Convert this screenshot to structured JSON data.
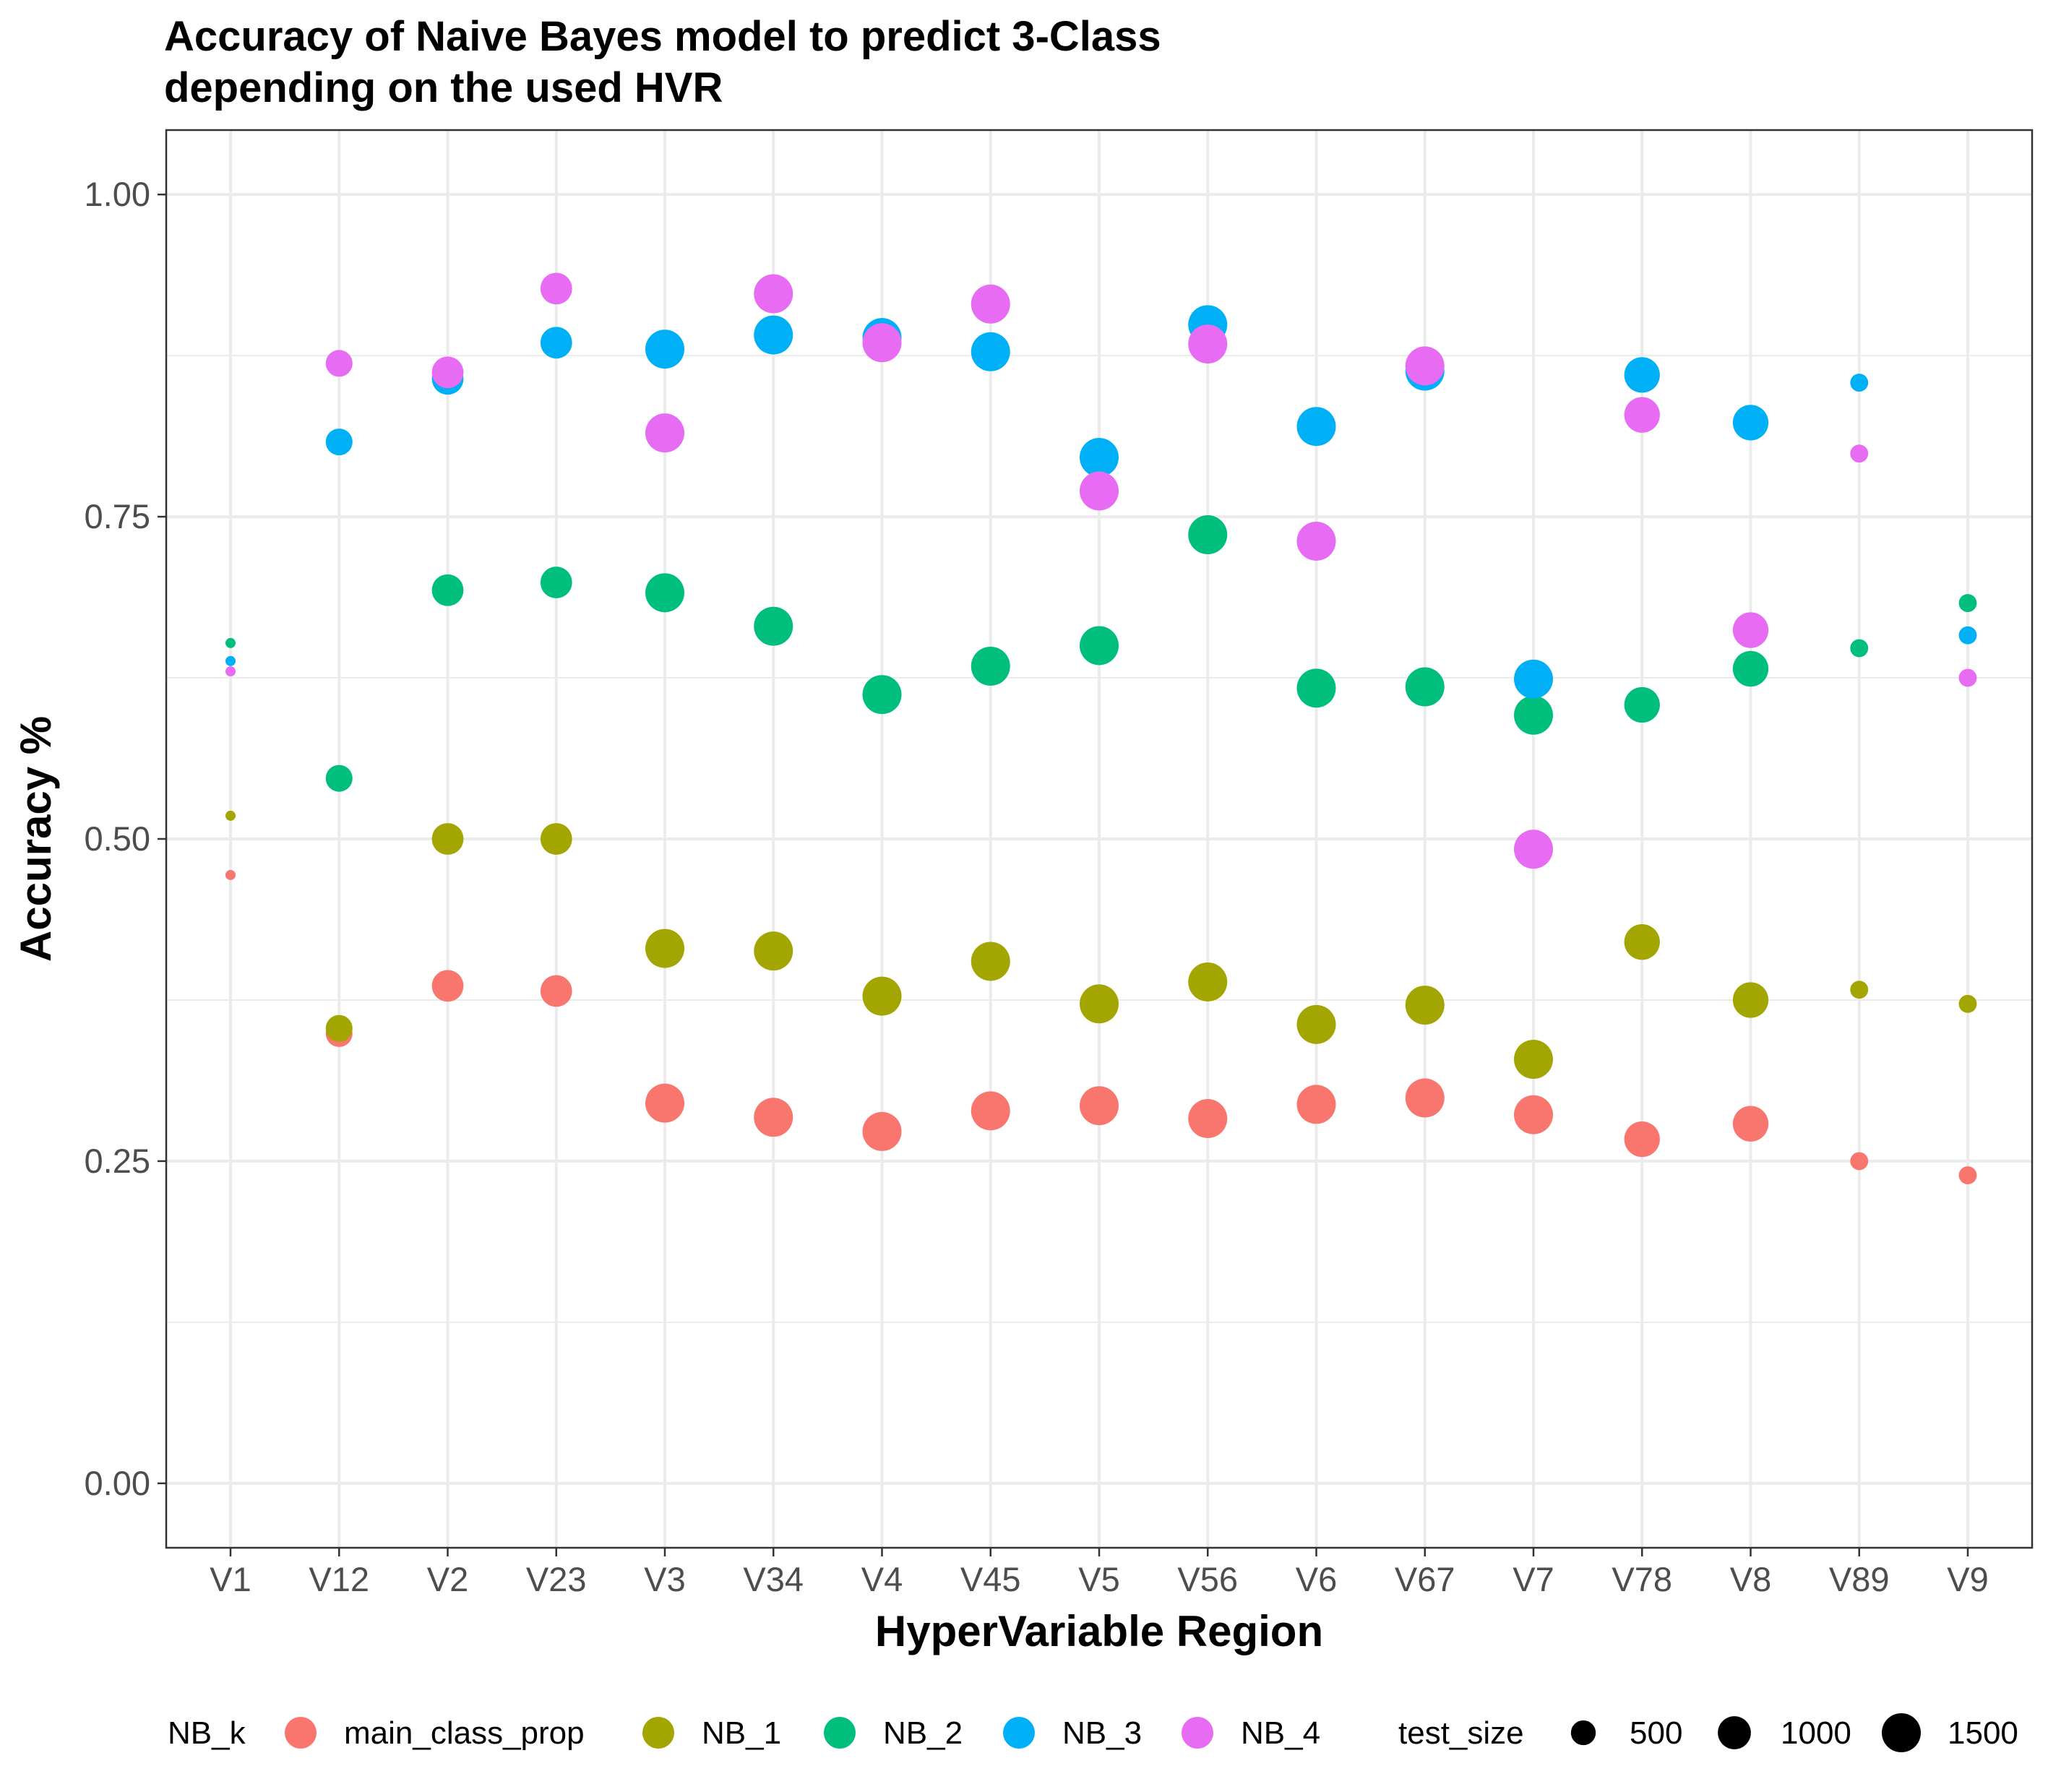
{
  "chart_data": {
    "type": "scatter",
    "title_lines": [
      "Accuracy of Naive Bayes model to predict 3-Class",
      "depending on the used HVR"
    ],
    "xlabel": "HyperVariable Region",
    "ylabel": "Accuracy %",
    "categories": [
      "V1",
      "V12",
      "V2",
      "V23",
      "V3",
      "V34",
      "V4",
      "V45",
      "V5",
      "V56",
      "V6",
      "V67",
      "V7",
      "V78",
      "V8",
      "V89",
      "V9"
    ],
    "ylim": [
      -0.05,
      1.05
    ],
    "yticks": [
      0.0,
      0.25,
      0.5,
      0.75,
      1.0
    ],
    "ytick_labels": [
      "0.00",
      "0.25",
      "0.50",
      "0.75",
      "1.00"
    ],
    "grid": true,
    "legend_position": "bottom",
    "color_legend_title": "NB_k",
    "size_legend_title": "test_size",
    "size_legend": [
      {
        "label": "500",
        "value": 500
      },
      {
        "label": "1000",
        "value": 1000
      },
      {
        "label": "1500",
        "value": 1500
      }
    ],
    "test_size": [
      150,
      600,
      900,
      900,
      1500,
      1500,
      1500,
      1500,
      1500,
      1500,
      1500,
      1500,
      1500,
      1200,
      1200,
      250,
      250
    ],
    "series": [
      {
        "name": "main_class_prop",
        "color": "#F8766D",
        "values": [
          0.472,
          0.349,
          0.386,
          0.382,
          0.295,
          0.284,
          0.273,
          0.289,
          0.293,
          0.283,
          0.294,
          0.299,
          0.286,
          0.267,
          0.279,
          0.25,
          0.239
        ]
      },
      {
        "name": "NB_1",
        "color": "#A3A500",
        "values": [
          0.518,
          0.353,
          0.5,
          0.5,
          0.415,
          0.413,
          0.378,
          0.405,
          0.372,
          0.389,
          0.356,
          0.371,
          0.329,
          0.42,
          0.375,
          0.383,
          0.372
        ]
      },
      {
        "name": "NB_2",
        "color": "#00BF7D",
        "values": [
          0.652,
          0.547,
          0.693,
          0.699,
          0.691,
          0.665,
          0.612,
          0.634,
          0.65,
          0.736,
          0.617,
          0.618,
          0.596,
          0.604,
          0.632,
          0.648,
          0.683
        ]
      },
      {
        "name": "NB_3",
        "color": "#00B0F6",
        "values": [
          0.638,
          0.808,
          0.857,
          0.885,
          0.88,
          0.891,
          0.889,
          0.878,
          0.796,
          0.899,
          0.82,
          0.863,
          0.624,
          0.86,
          0.823,
          0.854,
          0.658
        ]
      },
      {
        "name": "NB_4",
        "color": "#E76BF3",
        "values": [
          0.63,
          0.869,
          0.862,
          0.927,
          0.815,
          0.923,
          0.885,
          0.915,
          0.77,
          0.884,
          0.731,
          0.867,
          0.492,
          0.829,
          0.662,
          0.799,
          0.625
        ]
      }
    ]
  }
}
